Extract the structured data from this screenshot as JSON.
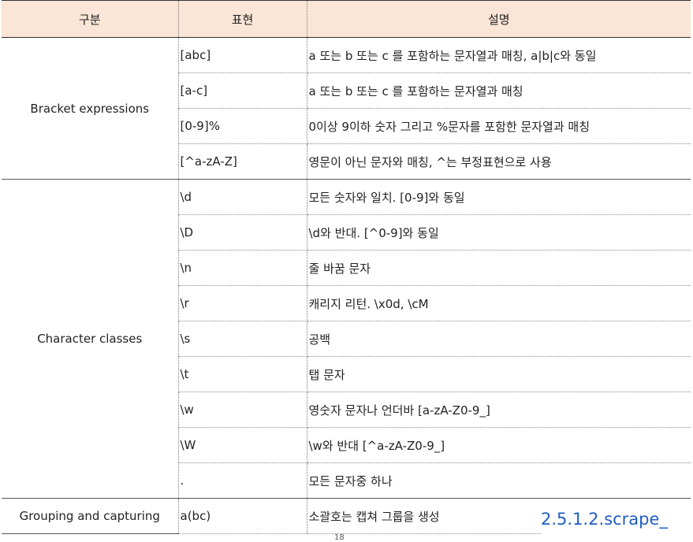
{
  "header": {
    "col1": "구분",
    "col2": "표현",
    "col3": "설명"
  },
  "groups": [
    {
      "category": "Bracket expressions",
      "rows": [
        {
          "expr": "[abc]",
          "desc": "a 또는 b 또는 c 를 포함하는 문자열과 매칭, a|b|c와 동일"
        },
        {
          "expr": "[a-c]",
          "desc": "a 또는 b 또는 c 를 포함하는 문자열과 매칭"
        },
        {
          "expr": "[0-9]%",
          "desc": "0이상 9이하 숫자 그리고 %문자를 포함한 문자열과 매칭"
        },
        {
          "expr": "[^a-zA-Z]",
          "desc": "영문이 아닌 문자와 매칭, ^는 부정표현으로 사용"
        }
      ]
    },
    {
      "category": "Character classes",
      "rows": [
        {
          "expr": "\\d",
          "desc": "모든 숫자와 일치. [0-9]와 동일"
        },
        {
          "expr": "\\D",
          "desc": "\\d와 반대. [^0-9]와 동일"
        },
        {
          "expr": "\\n",
          "desc": "줄 바꿈 문자"
        },
        {
          "expr": "\\r",
          "desc": "캐리지 리턴. \\x0d, \\cM"
        },
        {
          "expr": "\\s",
          "desc": "공백"
        },
        {
          "expr": "\\t",
          "desc": "탭 문자"
        },
        {
          "expr": "\\w",
          "desc": "영숫자 문자나 언더바 [a-zA-Z0-9_]"
        },
        {
          "expr": "\\W",
          "desc": "\\w와 반대  [^a-zA-Z0-9_]"
        },
        {
          "expr": ".",
          "desc": "모든 문자중 하나"
        }
      ]
    },
    {
      "category": "Grouping and capturing",
      "rows": [
        {
          "expr": "a(bc)",
          "desc": "소괄호는 캡쳐 그룹을 생성"
        }
      ]
    }
  ],
  "watermark": "2.5.1.2.scrape_",
  "page_number": "18"
}
